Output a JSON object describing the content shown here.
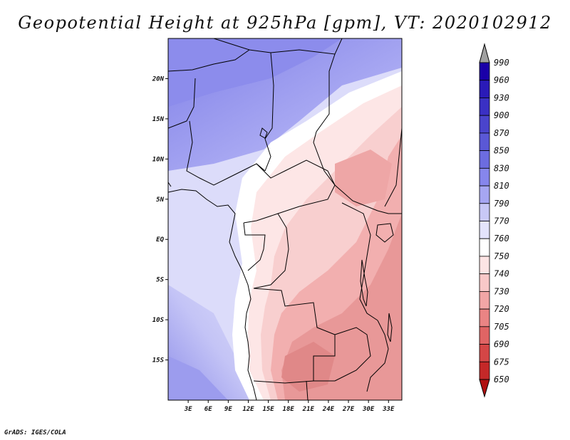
{
  "title": "Geopotential Height at 925hPa [gpm], VT: 2020102912",
  "credit": "GrADS: IGES/COLA",
  "map": {
    "lon_range": [
      0,
      35
    ],
    "lat_range": [
      -20,
      25
    ],
    "lon_ticks": [
      "3E",
      "6E",
      "9E",
      "12E",
      "15E",
      "18E",
      "21E",
      "24E",
      "27E",
      "30E",
      "33E"
    ],
    "lat_ticks": [
      "20N",
      "15N",
      "10N",
      "5N",
      "EQ",
      "5S",
      "10S",
      "15S"
    ]
  },
  "colorbar": {
    "levels": [
      "990",
      "960",
      "930",
      "900",
      "870",
      "850",
      "830",
      "810",
      "790",
      "770",
      "760",
      "750",
      "740",
      "730",
      "720",
      "705",
      "690",
      "675",
      "650"
    ],
    "colors": {
      "above_max": "#a0a0a0",
      "bins": [
        "#1a00a8",
        "#2a1ab8",
        "#3a30c4",
        "#4a44cc",
        "#5a58d6",
        "#6c6ce0",
        "#8686ec",
        "#a6a6f2",
        "#c8c8f6",
        "#e4e4fc",
        "#ffffff",
        "#fde4e4",
        "#f9c8c8",
        "#f2a6a6",
        "#ea8484",
        "#e06464",
        "#d44646",
        "#c42828",
        "#b01010"
      ]
    }
  }
}
